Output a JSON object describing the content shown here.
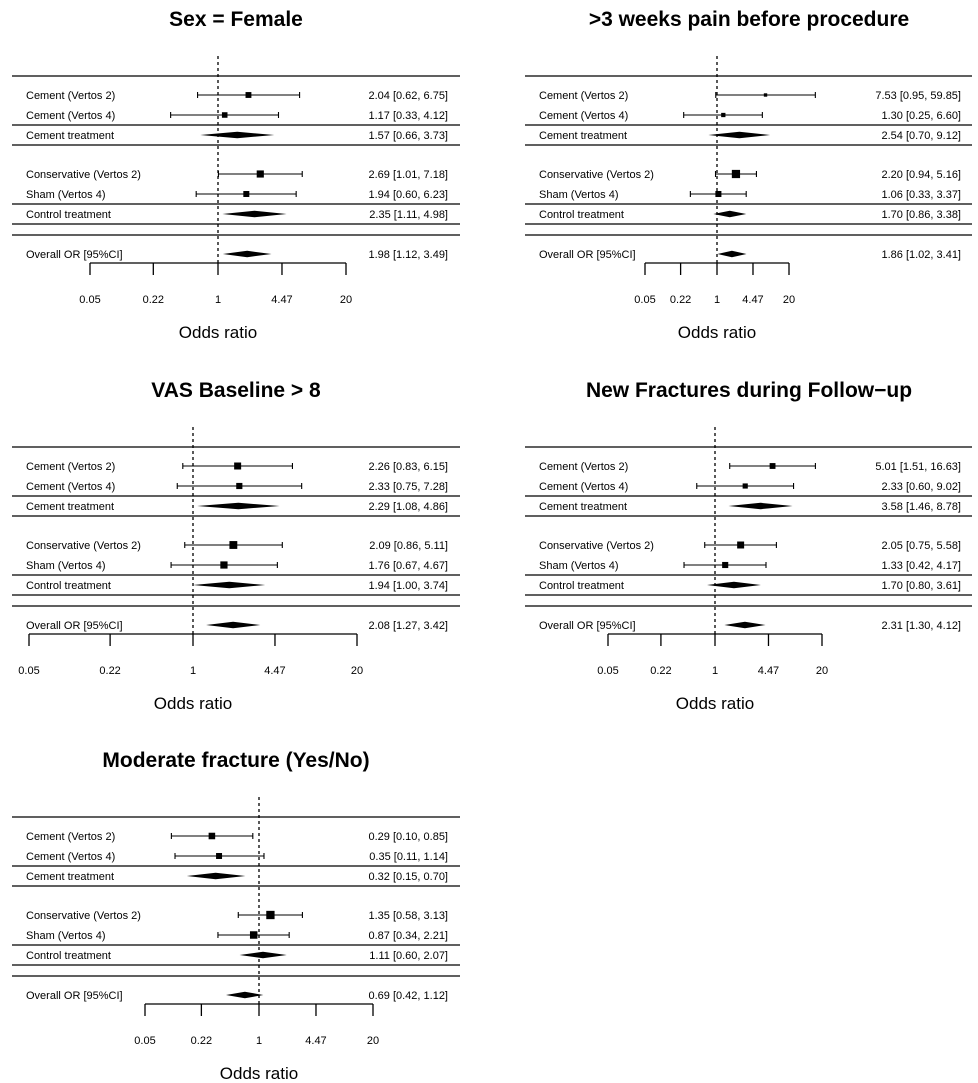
{
  "chart_data": [
    {
      "type": "forest",
      "title": "Sex = Female",
      "xlabel": "Odds ratio",
      "x_scale": "log",
      "xlim": [
        0.05,
        20
      ],
      "ticks": [
        "0.05",
        "0.22",
        "1",
        "4.47",
        "20"
      ],
      "reference_line": 1,
      "rows": [
        {
          "label": "Cement (Vertos 2)",
          "kind": "study",
          "or": 2.04,
          "lo": 0.62,
          "hi": 6.75,
          "text": "2.04 [0.62, 6.75]"
        },
        {
          "label": "Cement (Vertos 4)",
          "kind": "study",
          "or": 1.17,
          "lo": 0.33,
          "hi": 4.12,
          "text": "1.17 [0.33, 4.12]"
        },
        {
          "label": "Cement treatment",
          "kind": "summary",
          "or": 1.57,
          "lo": 0.66,
          "hi": 3.73,
          "text": "1.57 [0.66, 3.73]"
        },
        {
          "label": "Conservative (Vertos 2)",
          "kind": "study",
          "or": 2.69,
          "lo": 1.01,
          "hi": 7.18,
          "text": "2.69 [1.01, 7.18]"
        },
        {
          "label": "Sham (Vertos 4)",
          "kind": "study",
          "or": 1.94,
          "lo": 0.6,
          "hi": 6.23,
          "text": "1.94 [0.60, 6.23]"
        },
        {
          "label": "Control treatment",
          "kind": "summary",
          "or": 2.35,
          "lo": 1.11,
          "hi": 4.98,
          "text": "2.35 [1.11, 4.98]"
        },
        {
          "label": "Overall OR [95%CI]",
          "kind": "overall",
          "or": 1.98,
          "lo": 1.12,
          "hi": 3.49,
          "text": "1.98 [1.12, 3.49]"
        }
      ]
    },
    {
      "type": "forest",
      "title": ">3 weeks pain before procedure",
      "xlabel": "Odds ratio",
      "x_scale": "log",
      "xlim": [
        0.05,
        20
      ],
      "ticks": [
        "0.05",
        "0.22",
        "1",
        "4.47",
        "20"
      ],
      "reference_line": 1,
      "rows": [
        {
          "label": "Cement (Vertos 2)",
          "kind": "study",
          "or": 7.53,
          "lo": 0.95,
          "hi": 59.85,
          "text": "7.53 [0.95, 59.85]"
        },
        {
          "label": "Cement (Vertos 4)",
          "kind": "study",
          "or": 1.3,
          "lo": 0.25,
          "hi": 6.6,
          "text": "1.30 [0.25,  6.60]"
        },
        {
          "label": "Cement treatment",
          "kind": "summary",
          "or": 2.54,
          "lo": 0.7,
          "hi": 9.12,
          "text": "2.54 [0.70,  9.12]"
        },
        {
          "label": "Conservative (Vertos 2)",
          "kind": "study",
          "or": 2.2,
          "lo": 0.94,
          "hi": 5.16,
          "text": "2.20 [0.94,  5.16]"
        },
        {
          "label": "Sham (Vertos 4)",
          "kind": "study",
          "or": 1.06,
          "lo": 0.33,
          "hi": 3.37,
          "text": "1.06 [0.33,  3.37]"
        },
        {
          "label": "Control treatment",
          "kind": "summary",
          "or": 1.7,
          "lo": 0.86,
          "hi": 3.38,
          "text": "1.70 [0.86,  3.38]"
        },
        {
          "label": "Overall OR [95%CI]",
          "kind": "overall",
          "or": 1.86,
          "lo": 1.02,
          "hi": 3.41,
          "text": "1.86 [1.02,  3.41]"
        }
      ]
    },
    {
      "type": "forest",
      "title": "VAS Baseline > 8",
      "xlabel": "Odds ratio",
      "x_scale": "log",
      "xlim": [
        0.05,
        20
      ],
      "ticks": [
        "0.05",
        "0.22",
        "1",
        "4.47",
        "20"
      ],
      "reference_line": 1,
      "rows": [
        {
          "label": "Cement (Vertos 2)",
          "kind": "study",
          "or": 2.26,
          "lo": 0.83,
          "hi": 6.15,
          "text": "2.26 [0.83, 6.15]"
        },
        {
          "label": "Cement (Vertos 4)",
          "kind": "study",
          "or": 2.33,
          "lo": 0.75,
          "hi": 7.28,
          "text": "2.33 [0.75, 7.28]"
        },
        {
          "label": "Cement treatment",
          "kind": "summary",
          "or": 2.29,
          "lo": 1.08,
          "hi": 4.86,
          "text": "2.29 [1.08, 4.86]"
        },
        {
          "label": "Conservative (Vertos 2)",
          "kind": "study",
          "or": 2.09,
          "lo": 0.86,
          "hi": 5.11,
          "text": "2.09 [0.86, 5.11]"
        },
        {
          "label": "Sham (Vertos 4)",
          "kind": "study",
          "or": 1.76,
          "lo": 0.67,
          "hi": 4.67,
          "text": "1.76 [0.67, 4.67]"
        },
        {
          "label": "Control treatment",
          "kind": "summary",
          "or": 1.94,
          "lo": 1.0,
          "hi": 3.74,
          "text": "1.94 [1.00, 3.74]"
        },
        {
          "label": "Overall OR [95%CI]",
          "kind": "overall",
          "or": 2.08,
          "lo": 1.27,
          "hi": 3.42,
          "text": "2.08 [1.27, 3.42]"
        }
      ]
    },
    {
      "type": "forest",
      "title": "New Fractures during Follow−up",
      "xlabel": "Odds ratio",
      "x_scale": "log",
      "xlim": [
        0.05,
        20
      ],
      "ticks": [
        "0.05",
        "0.22",
        "1",
        "4.47",
        "20"
      ],
      "reference_line": 1,
      "rows": [
        {
          "label": "Cement (Vertos 2)",
          "kind": "study",
          "or": 5.01,
          "lo": 1.51,
          "hi": 16.63,
          "text": "5.01 [1.51, 16.63]"
        },
        {
          "label": "Cement (Vertos 4)",
          "kind": "study",
          "or": 2.33,
          "lo": 0.6,
          "hi": 9.02,
          "text": "2.33 [0.60,  9.02]"
        },
        {
          "label": "Cement treatment",
          "kind": "summary",
          "or": 3.58,
          "lo": 1.46,
          "hi": 8.78,
          "text": "3.58 [1.46,  8.78]"
        },
        {
          "label": "Conservative (Vertos 2)",
          "kind": "study",
          "or": 2.05,
          "lo": 0.75,
          "hi": 5.58,
          "text": "2.05 [0.75,  5.58]"
        },
        {
          "label": "Sham (Vertos 4)",
          "kind": "study",
          "or": 1.33,
          "lo": 0.42,
          "hi": 4.17,
          "text": "1.33 [0.42,  4.17]"
        },
        {
          "label": "Control treatment",
          "kind": "summary",
          "or": 1.7,
          "lo": 0.8,
          "hi": 3.61,
          "text": "1.70 [0.80,  3.61]"
        },
        {
          "label": "Overall OR [95%CI]",
          "kind": "overall",
          "or": 2.31,
          "lo": 1.3,
          "hi": 4.12,
          "text": "2.31 [1.30,  4.12]"
        }
      ]
    },
    {
      "type": "forest",
      "title": "Moderate fracture (Yes/No)",
      "xlabel": "Odds ratio",
      "x_scale": "log",
      "xlim": [
        0.05,
        20
      ],
      "ticks": [
        "0.05",
        "0.22",
        "1",
        "4.47",
        "20"
      ],
      "reference_line": 1,
      "rows": [
        {
          "label": "Cement (Vertos 2)",
          "kind": "study",
          "or": 0.29,
          "lo": 0.1,
          "hi": 0.85,
          "text": "0.29 [0.10, 0.85]"
        },
        {
          "label": "Cement (Vertos 4)",
          "kind": "study",
          "or": 0.35,
          "lo": 0.11,
          "hi": 1.14,
          "text": "0.35 [0.11, 1.14]"
        },
        {
          "label": "Cement treatment",
          "kind": "summary",
          "or": 0.32,
          "lo": 0.15,
          "hi": 0.7,
          "text": "0.32 [0.15, 0.70]"
        },
        {
          "label": "Conservative (Vertos 2)",
          "kind": "study",
          "or": 1.35,
          "lo": 0.58,
          "hi": 3.13,
          "text": "1.35 [0.58, 3.13]"
        },
        {
          "label": "Sham (Vertos 4)",
          "kind": "study",
          "or": 0.87,
          "lo": 0.34,
          "hi": 2.21,
          "text": "0.87 [0.34, 2.21]"
        },
        {
          "label": "Control treatment",
          "kind": "summary",
          "or": 1.11,
          "lo": 0.6,
          "hi": 2.07,
          "text": "1.11 [0.60, 2.07]"
        },
        {
          "label": "Overall OR [95%CI]",
          "kind": "overall",
          "or": 0.69,
          "lo": 0.42,
          "hi": 1.12,
          "text": "0.69 [0.42, 1.12]"
        }
      ]
    }
  ]
}
